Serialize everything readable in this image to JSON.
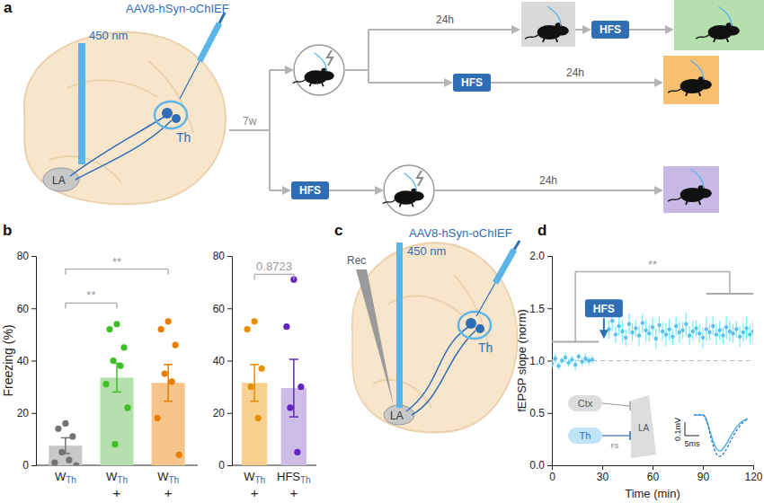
{
  "panel_labels": [
    "a",
    "b",
    "c",
    "d"
  ],
  "panel_a": {
    "fiber": "450 nm",
    "virus": "AAV8-hSyn-oChIEF",
    "source": "Th",
    "target": "LA",
    "delay": "7w",
    "stimulation": "HFS",
    "interval": "24h"
  },
  "panel_c": {
    "fiber": "450 nm",
    "virus": "AAV8-hSyn-oChIEF",
    "recording": "Rec",
    "source": "Th",
    "target": "LA"
  },
  "chart_data": [
    {
      "type": "bar",
      "ylabel": "Freezing (%)",
      "categories": [
        "WTh",
        "WTh",
        "WTh"
      ],
      "conditions": [
        null,
        "+",
        "+"
      ],
      "values": [
        7.5,
        33.5,
        31.5
      ],
      "errors": [
        3,
        5.5,
        7
      ],
      "points": [
        [
          16,
          14,
          11,
          5,
          2,
          1,
          0
        ],
        [
          54,
          52,
          45,
          40,
          38,
          31,
          22,
          8
        ],
        [
          55,
          52,
          46,
          35,
          32,
          18,
          4
        ]
      ],
      "colors": [
        "#c8c8c8",
        "#b5e0ad",
        "#f7c58a"
      ],
      "ylim": [
        0,
        80
      ],
      "yticks": [
        0,
        20,
        40,
        60,
        80
      ],
      "comparisons": [
        {
          "pair": [
            0,
            1
          ],
          "y": 62,
          "label": "**"
        },
        {
          "pair": [
            0,
            2
          ],
          "y": 75,
          "label": "**"
        }
      ]
    },
    {
      "type": "bar",
      "categories": [
        "WTh",
        "HFSTh"
      ],
      "conditions": [
        "+",
        "+"
      ],
      "values": [
        31.5,
        29.5
      ],
      "errors": [
        7,
        11
      ],
      "points": [
        [
          55,
          52,
          37,
          30,
          18
        ],
        [
          71,
          53,
          30,
          22,
          5
        ]
      ],
      "colors": [
        "#f9d08f",
        "#cdbde6"
      ],
      "ylim": [
        0,
        80
      ],
      "yticks": [
        0,
        20,
        40,
        60,
        80
      ],
      "comparisons": [
        {
          "pair": [
            0,
            1
          ],
          "y": 73,
          "label": "0.8723"
        }
      ]
    },
    {
      "type": "scatter",
      "xlabel": "Time (min)",
      "ylabel": "fEPSP slope (norm)",
      "color": "#5bc0eb",
      "x": [
        0,
        2,
        4,
        6,
        8,
        10,
        12,
        14,
        16,
        18,
        20,
        22,
        24,
        34,
        36,
        38,
        40,
        42,
        44,
        46,
        48,
        50,
        52,
        54,
        56,
        58,
        60,
        62,
        64,
        66,
        68,
        70,
        72,
        74,
        76,
        78,
        80,
        82,
        84,
        86,
        88,
        90,
        92,
        94,
        96,
        98,
        100,
        102,
        104,
        106,
        108,
        110,
        112,
        114,
        116,
        118,
        120
      ],
      "values": [
        0.97,
        1.02,
        0.95,
        1.0,
        1.03,
        0.98,
        1.01,
        0.96,
        1.04,
        0.99,
        1.02,
        1.0,
        1.01,
        1.3,
        1.38,
        1.25,
        1.33,
        1.28,
        1.22,
        1.35,
        1.27,
        1.31,
        1.24,
        1.36,
        1.29,
        1.26,
        1.32,
        1.21,
        1.34,
        1.28,
        1.25,
        1.3,
        1.23,
        1.33,
        1.27,
        1.29,
        1.35,
        1.24,
        1.28,
        1.31,
        1.26,
        1.22,
        1.3,
        1.27,
        1.33,
        1.25,
        1.29,
        1.24,
        1.32,
        1.28,
        1.26,
        1.3,
        1.23,
        1.27,
        1.31,
        1.25,
        1.28
      ],
      "errors": [
        0.04,
        0.05,
        0.04,
        0.03,
        0.05,
        0.04,
        0.04,
        0.05,
        0.03,
        0.04,
        0.05,
        0.04,
        0.04,
        0.09,
        0.1,
        0.08,
        0.09,
        0.11,
        0.08,
        0.1,
        0.09,
        0.08,
        0.1,
        0.09,
        0.11,
        0.08,
        0.09,
        0.1,
        0.08,
        0.09,
        0.11,
        0.1,
        0.08,
        0.09,
        0.1,
        0.08,
        0.11,
        0.09,
        0.1,
        0.08,
        0.09,
        0.1,
        0.11,
        0.08,
        0.09,
        0.1,
        0.09,
        0.08,
        0.11,
        0.1,
        0.09,
        0.08,
        0.1,
        0.09,
        0.11,
        0.08,
        0.1
      ],
      "xlim": [
        0,
        120
      ],
      "ylim": [
        0,
        2
      ],
      "xticks": [
        0,
        30,
        60,
        90,
        120
      ],
      "yticks": [
        {
          "value": 0,
          "label": "0.0"
        },
        0.5,
        {
          "value": 1,
          "label": "1.0"
        },
        1.5,
        {
          "value": 2,
          "label": "2.0"
        }
      ],
      "reference_line": 1,
      "annotations": [
        {
          "text": "HFS",
          "x": 31,
          "y": 1.5
        }
      ],
      "comparisons": [
        {
          "ranges": [
            [
              0,
              28
            ],
            [
              92,
              120
            ]
          ],
          "y": [
            1.18,
            1.64
          ],
          "top": 1.85,
          "label": "**"
        }
      ],
      "inset": {
        "labels": [
          "Ctx",
          "Th",
          "LA",
          "FS"
        ],
        "scale_y": "0.1mV",
        "scale_x": "5ms"
      }
    }
  ]
}
